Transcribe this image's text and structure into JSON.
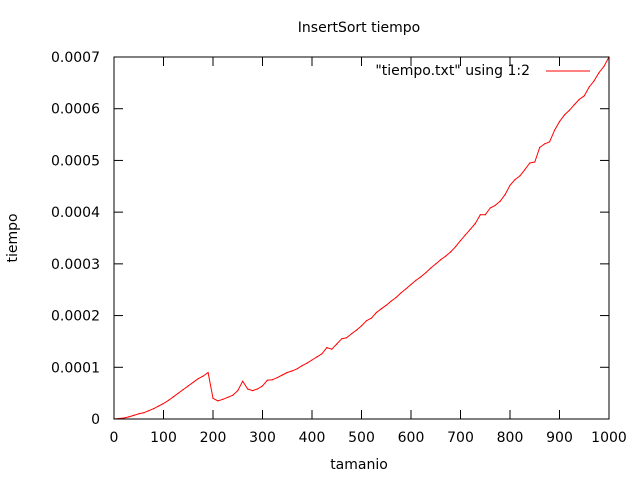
{
  "chart_data": {
    "type": "line",
    "title": "InsertSort tiempo",
    "xlabel": "tamanio",
    "ylabel": "tiempo",
    "xlim": [
      0,
      1000
    ],
    "ylim": [
      0,
      0.0007
    ],
    "x_ticks": [
      0,
      100,
      200,
      300,
      400,
      500,
      600,
      700,
      800,
      900,
      1000
    ],
    "x_tick_labels": [
      "0",
      "100",
      "200",
      "300",
      "400",
      "500",
      "600",
      "700",
      "800",
      "900",
      "1000"
    ],
    "y_ticks": [
      0,
      0.0001,
      0.0002,
      0.0003,
      0.0004,
      0.0005,
      0.0006,
      0.0007
    ],
    "y_tick_labels": [
      "0",
      "0.0001",
      "0.0002",
      "0.0003",
      "0.0004",
      "0.0005",
      "0.0006",
      "0.0007"
    ],
    "grid": false,
    "legend_position": "top-right",
    "series": [
      {
        "name": "\"tiempo.txt\" using 1:2",
        "color": "#ff0000",
        "x": [
          0,
          10,
          20,
          30,
          40,
          50,
          60,
          70,
          80,
          90,
          100,
          110,
          120,
          130,
          140,
          150,
          160,
          170,
          180,
          190,
          200,
          210,
          220,
          230,
          240,
          250,
          260,
          270,
          280,
          290,
          300,
          310,
          320,
          330,
          340,
          350,
          360,
          370,
          380,
          390,
          400,
          410,
          420,
          430,
          440,
          450,
          460,
          470,
          480,
          490,
          500,
          510,
          520,
          530,
          540,
          550,
          560,
          570,
          580,
          590,
          600,
          610,
          620,
          630,
          640,
          650,
          660,
          670,
          680,
          690,
          700,
          710,
          720,
          730,
          740,
          750,
          760,
          770,
          780,
          790,
          800,
          810,
          820,
          830,
          840,
          850,
          860,
          870,
          880,
          890,
          900,
          910,
          920,
          930,
          940,
          950,
          960,
          970,
          980,
          990,
          1000
        ],
        "y": [
          0,
          1e-06,
          2e-06,
          4e-06,
          7e-06,
          1e-05,
          1.2e-05,
          1.6e-05,
          2e-05,
          2.5e-05,
          3e-05,
          3.6e-05,
          4.3e-05,
          5e-05,
          5.7e-05,
          6.4e-05,
          7.1e-05,
          7.8e-05,
          8.3e-05,
          9e-05,
          4e-05,
          3.5e-05,
          3.8e-05,
          4.2e-05,
          4.6e-05,
          5.5e-05,
          7.3e-05,
          5.8e-05,
          5.5e-05,
          5.8e-05,
          6.4e-05,
          7.5e-05,
          7.6e-05,
          8e-05,
          8.5e-05,
          9e-05,
          9.3e-05,
          9.7e-05,
          0.000103,
          0.000108,
          0.000114,
          0.00012,
          0.000126,
          0.000138,
          0.000135,
          0.000145,
          0.000155,
          0.000157,
          0.000165,
          0.000172,
          0.00018,
          0.00019,
          0.000195,
          0.000206,
          0.000213,
          0.00022,
          0.000228,
          0.000235,
          0.000244,
          0.000252,
          0.00026,
          0.000268,
          0.000275,
          0.000283,
          0.000292,
          0.0003,
          0.000308,
          0.000315,
          0.000323,
          0.000333,
          0.000345,
          0.000356,
          0.000367,
          0.000378,
          0.000395,
          0.000395,
          0.000408,
          0.000413,
          0.000421,
          0.000434,
          0.000452,
          0.000463,
          0.00047,
          0.000482,
          0.000495,
          0.000497,
          0.000525,
          0.000532,
          0.000536,
          0.000558,
          0.000575,
          0.000588,
          0.000597,
          0.000608,
          0.000618,
          0.000625,
          0.000642,
          0.000654,
          0.00067,
          0.000682,
          0.0007
        ]
      }
    ]
  }
}
